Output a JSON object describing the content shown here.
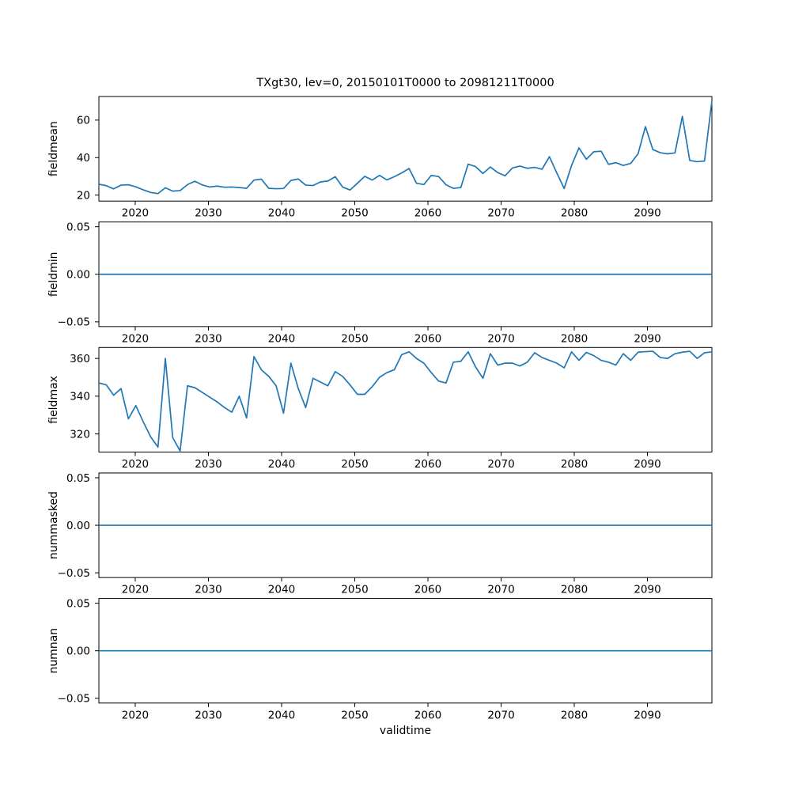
{
  "figure": {
    "title": "TXgt30, lev=0, 20150101T0000 to 20981211T0000",
    "xlabel": "validtime",
    "background": "#ffffff",
    "line_color": "#1f77b4",
    "axis_color": "#000000",
    "text_color": "#000000"
  },
  "chart_data": {
    "type": "line",
    "title": "TXgt30, lev=0, 20150101T0000 to 20981211T0000",
    "xlabel": "validtime",
    "grid": false,
    "legend": null,
    "x_years": [
      2015,
      2016,
      2017,
      2018,
      2019,
      2020,
      2021,
      2022,
      2023,
      2024,
      2025,
      2026,
      2027,
      2028,
      2029,
      2030,
      2031,
      2032,
      2033,
      2034,
      2035,
      2036,
      2037,
      2038,
      2039,
      2040,
      2041,
      2042,
      2043,
      2044,
      2045,
      2046,
      2047,
      2048,
      2049,
      2050,
      2051,
      2052,
      2053,
      2054,
      2055,
      2056,
      2057,
      2058,
      2059,
      2060,
      2061,
      2062,
      2063,
      2064,
      2065,
      2066,
      2067,
      2068,
      2069,
      2070,
      2071,
      2072,
      2073,
      2074,
      2075,
      2076,
      2077,
      2078,
      2079,
      2080,
      2081,
      2082,
      2083,
      2084,
      2085,
      2086,
      2087,
      2088,
      2089,
      2090,
      2091,
      2092,
      2093,
      2094,
      2095,
      2096,
      2097,
      2098
    ],
    "xlim": [
      2015.03,
      2098.81
    ],
    "xtick_values": [
      2020,
      2030,
      2040,
      2050,
      2060,
      2070,
      2080,
      2090
    ],
    "xtick_labels": [
      "2020",
      "2030",
      "2040",
      "2050",
      "2060",
      "2070",
      "2080",
      "2090"
    ],
    "subplots": [
      {
        "ylabel": "fieldmean",
        "ylim": [
          16.8,
          72.6
        ],
        "ytick_values": [
          60,
          40,
          20
        ],
        "ytick_labels": [
          "60",
          "40",
          "20"
        ],
        "values": [
          25.8,
          25.0,
          23.3,
          25.3,
          25.5,
          24.4,
          22.8,
          21.4,
          20.8,
          23.9,
          22.1,
          22.4,
          25.6,
          27.4,
          25.4,
          24.3,
          24.8,
          24.2,
          24.3,
          24.0,
          23.6,
          28.0,
          28.5,
          23.6,
          23.4,
          23.5,
          27.8,
          28.6,
          25.3,
          25.1,
          27.0,
          27.5,
          29.8,
          24.3,
          22.7,
          26.3,
          30.0,
          28.0,
          30.5,
          28.1,
          29.8,
          31.8,
          34.2,
          26.3,
          25.6,
          30.5,
          29.9,
          25.5,
          23.6,
          24.0,
          36.5,
          35.2,
          31.5,
          35.0,
          32.0,
          30.3,
          34.5,
          35.5,
          34.3,
          34.8,
          33.8,
          40.5,
          31.8,
          23.5,
          35.8,
          45.2,
          39.1,
          43.1,
          43.4,
          36.4,
          37.3,
          35.8,
          36.9,
          42.0,
          56.5,
          44.3,
          42.6,
          42.0,
          42.5,
          62.0,
          38.5,
          37.8,
          38.2,
          70.3
        ]
      },
      {
        "ylabel": "fieldmin",
        "ylim": [
          -0.055,
          0.055
        ],
        "ytick_values": [
          0.05,
          0.0,
          -0.05
        ],
        "ytick_labels": [
          "0.05",
          "0.00",
          "−0.05"
        ],
        "constant": 0.0
      },
      {
        "ylabel": "fieldmax",
        "ylim": [
          310.4,
          365.8
        ],
        "ytick_values": [
          360,
          340,
          320
        ],
        "ytick_labels": [
          "360",
          "340",
          "320"
        ],
        "values": [
          347,
          346,
          340.5,
          344,
          328,
          335,
          326.5,
          318.5,
          313,
          360,
          318,
          311,
          345.5,
          344.5,
          342,
          339.5,
          337,
          334,
          331.5,
          340,
          328.5,
          361,
          354,
          350.5,
          345.5,
          331,
          357.5,
          344,
          334,
          349.5,
          347.5,
          345.5,
          353,
          350.5,
          346,
          341,
          341,
          345,
          350,
          352.5,
          354,
          362,
          363.5,
          360,
          357.5,
          352.5,
          348,
          347,
          358,
          358.5,
          363.5,
          355.5,
          349.5,
          362.5,
          356.5,
          357.5,
          357.5,
          356,
          358,
          363,
          360.5,
          359,
          357.5,
          355,
          363.5,
          359,
          363.2,
          361.5,
          359,
          358,
          356.5,
          362.5,
          359,
          363.3,
          363.6,
          363.8,
          360.5,
          360,
          362.5,
          363.3,
          363.8,
          360,
          363,
          363.5
        ]
      },
      {
        "ylabel": "nummasked",
        "ylim": [
          -0.055,
          0.055
        ],
        "ytick_values": [
          0.05,
          0.0,
          -0.05
        ],
        "ytick_labels": [
          "0.05",
          "0.00",
          "−0.05"
        ],
        "constant": 0.0
      },
      {
        "ylabel": "numnan",
        "ylim": [
          -0.055,
          0.055
        ],
        "ytick_values": [
          0.05,
          0.0,
          -0.05
        ],
        "ytick_labels": [
          "0.05",
          "0.00",
          "−0.05"
        ],
        "constant": 0.0
      }
    ]
  }
}
